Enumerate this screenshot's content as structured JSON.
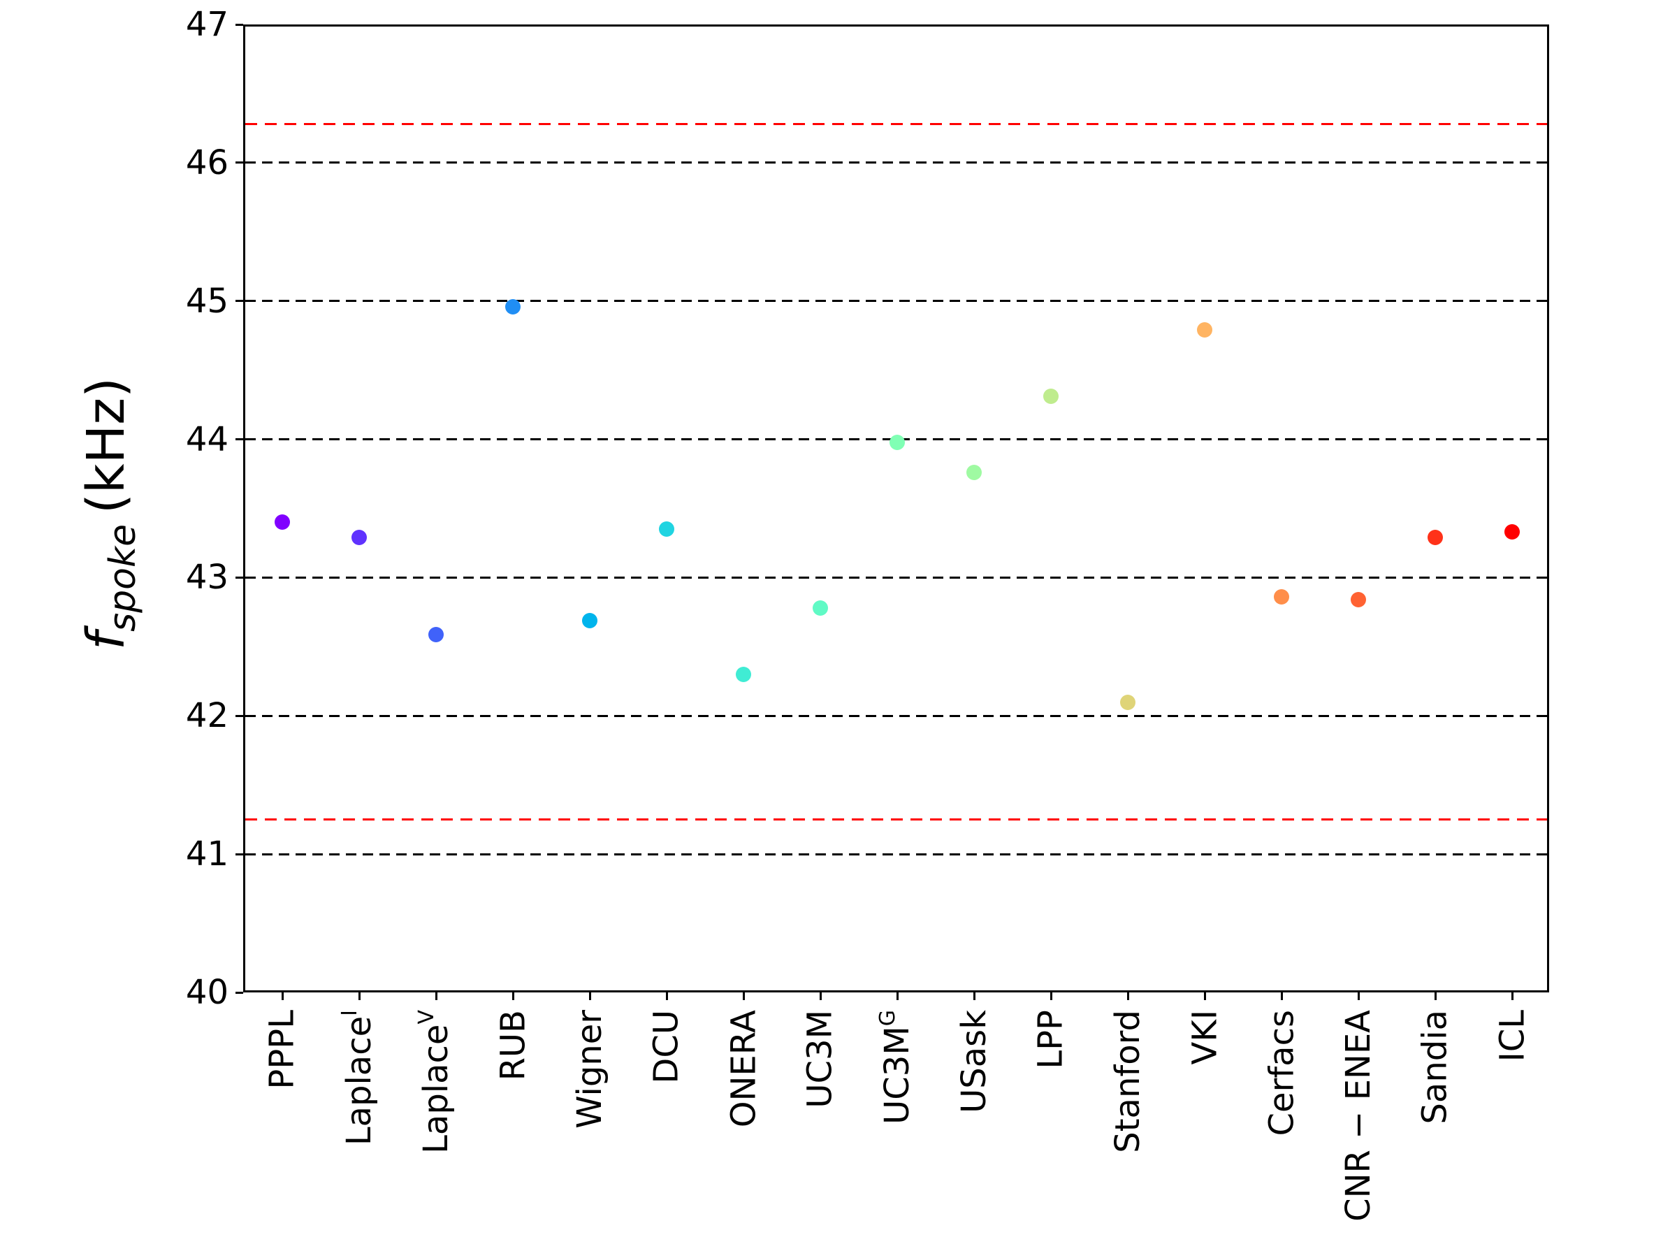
{
  "axes": {
    "ylabel_f": "f",
    "ylabel_sub": "spoke",
    "ylabel_unit": "(kHz)"
  },
  "chart_data": {
    "type": "scatter",
    "title": "",
    "xlabel": "",
    "ylabel": "f_spoke (kHz)",
    "ylim": [
      40,
      47
    ],
    "y_ticks": [
      47,
      46,
      45,
      44,
      43,
      42,
      41,
      40
    ],
    "grid": {
      "orientation": "horizontal",
      "values": [
        46,
        45,
        44,
        43,
        42,
        41
      ],
      "style": "dashed",
      "color": "#000000"
    },
    "legend": "none",
    "reference_lines": [
      {
        "value": 46.28,
        "color": "#ff0000",
        "style": "dashed"
      },
      {
        "value": 41.25,
        "color": "#ff0000",
        "style": "dashed"
      }
    ],
    "categories": [
      {
        "base": "PPPL",
        "sup": "",
        "display": "PPPL"
      },
      {
        "base": "Laplace",
        "sup": "I",
        "display": "Laplace^I"
      },
      {
        "base": "Laplace",
        "sup": "V",
        "display": "Laplace^V"
      },
      {
        "base": "RUB",
        "sup": "",
        "display": "RUB"
      },
      {
        "base": "Wigner",
        "sup": "",
        "display": "Wigner"
      },
      {
        "base": "DCU",
        "sup": "",
        "display": "DCU"
      },
      {
        "base": "ONERA",
        "sup": "",
        "display": "ONERA"
      },
      {
        "base": "UC3M",
        "sup": "",
        "display": "UC3M"
      },
      {
        "base": "UC3M",
        "sup": "G",
        "display": "UC3M^G"
      },
      {
        "base": "USask",
        "sup": "",
        "display": "USask"
      },
      {
        "base": "LPP",
        "sup": "",
        "display": "LPP"
      },
      {
        "base": "Stanford",
        "sup": "",
        "display": "Stanford"
      },
      {
        "base": "VKI",
        "sup": "",
        "display": "VKI"
      },
      {
        "base": "Cerfacs",
        "sup": "",
        "display": "Cerfacs"
      },
      {
        "base": "CNR − ENEA",
        "sup": "",
        "display": "CNR − ENEA"
      },
      {
        "base": "Sandia",
        "sup": "",
        "display": "Sandia"
      },
      {
        "base": "ICL",
        "sup": "",
        "display": "ICL"
      }
    ],
    "values": [
      43.4,
      43.29,
      42.59,
      44.96,
      42.69,
      43.35,
      42.3,
      42.78,
      43.98,
      43.76,
      44.31,
      42.1,
      44.79,
      42.86,
      42.84,
      43.29,
      43.33
    ],
    "colors": [
      "#8000ff",
      "#6032fe",
      "#4062fa",
      "#208ef4",
      "#00b4ec",
      "#20d4e1",
      "#40ecd4",
      "#60fac5",
      "#80ffb4",
      "#9ffaa2",
      "#bfec8e",
      "#dfd478",
      "#ffb462",
      "#ff8e4a",
      "#ff6232",
      "#ff3219",
      "#ff0000"
    ]
  }
}
